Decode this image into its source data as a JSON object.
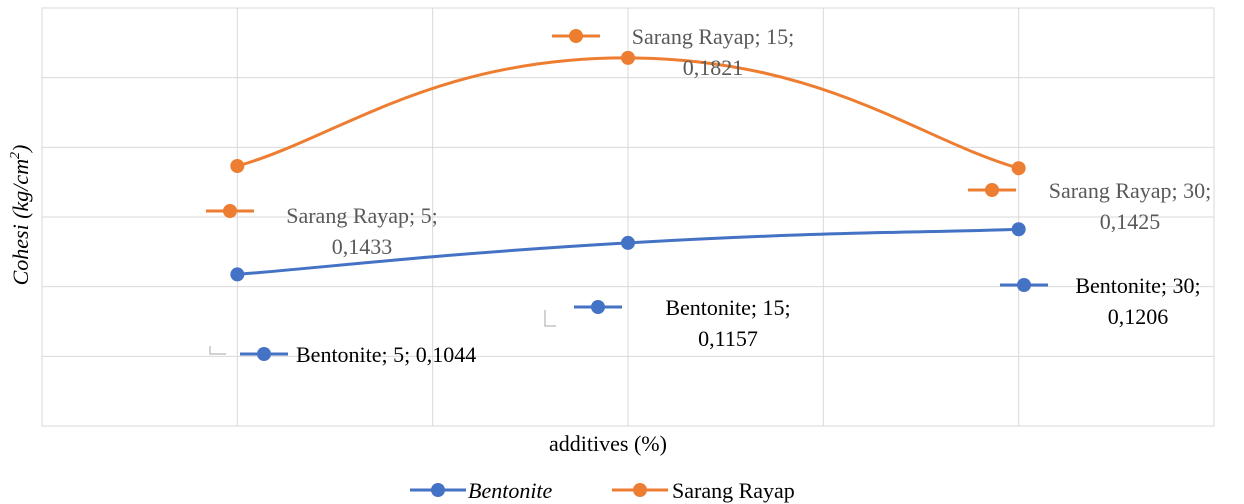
{
  "chart_data": {
    "type": "line",
    "title": "",
    "xlabel": "additives (%)",
    "ylabel": "Cohesi (kg/cm²)",
    "ylabel_parts": {
      "main": "Cohesi (kg/cm",
      "sup": "2",
      "end": ")"
    },
    "x": [
      5,
      15,
      30
    ],
    "ylim": [
      0.05,
      0.2
    ],
    "grid": true,
    "smooth": true,
    "legend_position": "bottom",
    "series": [
      {
        "name": "Bentonite",
        "color": "#4472C4",
        "italic_legend": true,
        "values": [
          0.1044,
          0.1157,
          0.1206
        ],
        "labels": [
          [
            "Bentonite; 5; 0,1044"
          ],
          [
            "Bentonite; 15;",
            "0,1157"
          ],
          [
            "Bentonite; 30;",
            "0,1206"
          ]
        ]
      },
      {
        "name": "Sarang Rayap",
        "color": "#ED7D31",
        "italic_legend": false,
        "values": [
          0.1433,
          0.1821,
          0.1425
        ],
        "labels": [
          [
            "Sarang Rayap; 5;",
            "0,1433"
          ],
          [
            "Sarang Rayap; 15;",
            "0,1821"
          ],
          [
            "Sarang Rayap; 30;",
            "0,1425"
          ]
        ]
      }
    ]
  }
}
